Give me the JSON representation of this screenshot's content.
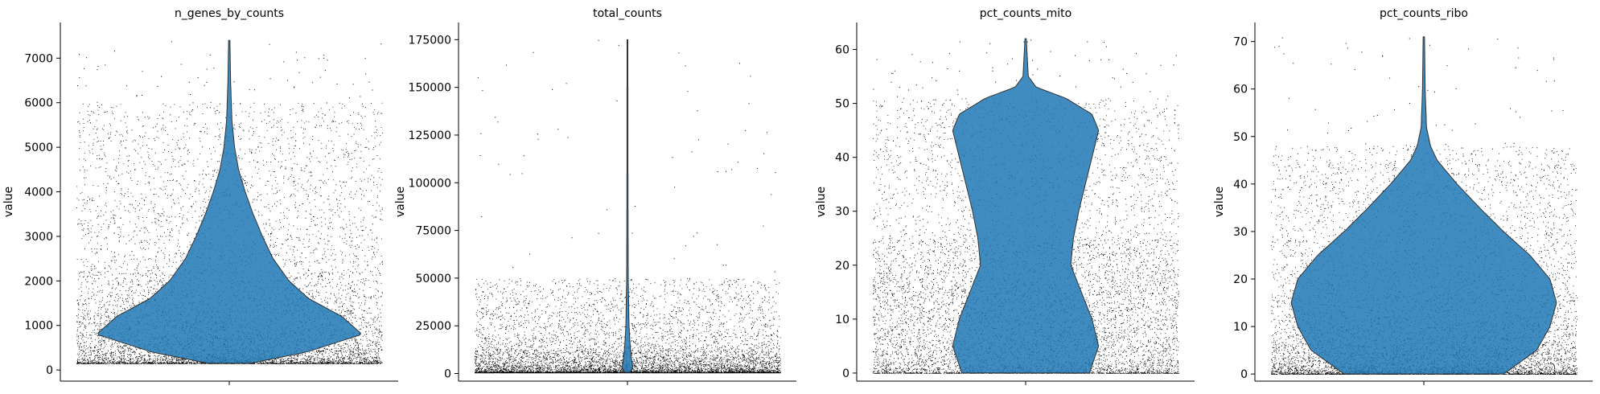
{
  "chart_data": [
    {
      "type": "violin",
      "title": "n_genes_by_counts",
      "ylabel": "value",
      "xlabel": "",
      "ylim": [
        -250,
        7800
      ],
      "yticks": [
        0,
        1000,
        2000,
        3000,
        4000,
        5000,
        6000,
        7000
      ],
      "stats": {
        "min": 150,
        "q1": 550,
        "median": 850,
        "q3": 1500,
        "max": 7400
      },
      "scatter_range": [
        150,
        6000
      ],
      "violin_profile": [
        [
          150,
          0.16
        ],
        [
          400,
          0.58
        ],
        [
          800,
          1.0
        ],
        [
          1200,
          0.85
        ],
        [
          1600,
          0.6
        ],
        [
          2000,
          0.45
        ],
        [
          2500,
          0.33
        ],
        [
          3000,
          0.25
        ],
        [
          3500,
          0.18
        ],
        [
          4000,
          0.12
        ],
        [
          4500,
          0.07
        ],
        [
          5000,
          0.04
        ],
        [
          5600,
          0.02
        ],
        [
          6500,
          0.01
        ],
        [
          7400,
          0.005
        ]
      ],
      "fill_color": "#1f77b4"
    },
    {
      "type": "violin",
      "title": "total_counts",
      "ylabel": "value",
      "xlabel": "",
      "ylim": [
        -4000,
        184000
      ],
      "yticks": [
        0,
        25000,
        50000,
        75000,
        100000,
        125000,
        150000,
        175000
      ],
      "stats": {
        "min": 500,
        "q1": 2500,
        "median": 4500,
        "q3": 8000,
        "max": 175000
      },
      "scatter_range": [
        500,
        50000
      ],
      "violin_profile": [
        [
          500,
          0.02
        ],
        [
          3000,
          0.04
        ],
        [
          8000,
          0.03
        ],
        [
          15000,
          0.02
        ],
        [
          25000,
          0.012
        ],
        [
          50000,
          0.006
        ],
        [
          100000,
          0.004
        ],
        [
          175000,
          0.003
        ]
      ],
      "fill_color": "#1f77b4"
    },
    {
      "type": "violin",
      "title": "pct_counts_mito",
      "ylabel": "value",
      "xlabel": "",
      "ylim": [
        -1.5,
        65
      ],
      "yticks": [
        0,
        10,
        20,
        30,
        40,
        50,
        60
      ],
      "stats": {
        "min": 0,
        "q1": 15,
        "median": 30,
        "q3": 45,
        "max": 62
      },
      "scatter_range": [
        0,
        51
      ],
      "violin_profile": [
        [
          0,
          0.48
        ],
        [
          5,
          0.55
        ],
        [
          10,
          0.5
        ],
        [
          15,
          0.42
        ],
        [
          20,
          0.34
        ],
        [
          25,
          0.36
        ],
        [
          30,
          0.4
        ],
        [
          35,
          0.45
        ],
        [
          40,
          0.5
        ],
        [
          45,
          0.55
        ],
        [
          48,
          0.5
        ],
        [
          51,
          0.3
        ],
        [
          53,
          0.08
        ],
        [
          55,
          0.02
        ],
        [
          62,
          0.005
        ]
      ],
      "fill_color": "#1f77b4"
    },
    {
      "type": "violin",
      "title": "pct_counts_ribo",
      "ylabel": "value",
      "xlabel": "",
      "ylim": [
        -1.5,
        74
      ],
      "yticks": [
        0,
        10,
        20,
        30,
        40,
        50,
        60,
        70
      ],
      "stats": {
        "min": 0,
        "q1": 10,
        "median": 18,
        "q3": 28,
        "max": 71
      },
      "scatter_range": [
        0,
        48
      ],
      "violin_profile": [
        [
          0,
          0.6
        ],
        [
          5,
          0.85
        ],
        [
          10,
          0.95
        ],
        [
          15,
          1.0
        ],
        [
          20,
          0.95
        ],
        [
          25,
          0.8
        ],
        [
          30,
          0.6
        ],
        [
          35,
          0.42
        ],
        [
          40,
          0.25
        ],
        [
          45,
          0.1
        ],
        [
          48,
          0.05
        ],
        [
          52,
          0.02
        ],
        [
          60,
          0.01
        ],
        [
          71,
          0.005
        ]
      ],
      "fill_color": "#1f77b4"
    }
  ]
}
